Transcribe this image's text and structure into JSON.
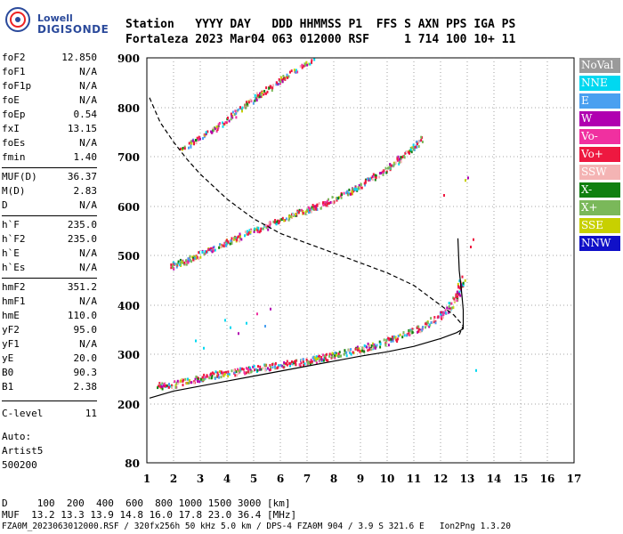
{
  "logo": {
    "line1": "Lowell",
    "line2": "DIGISONDE"
  },
  "header": {
    "row1": "Station   YYYY DAY   DDD HHMMSS P1  FFS S AXN PPS IGA PS",
    "row2": "Fortaleza 2023 Mar04 063 012000 RSF     1 714 100 10+ 11"
  },
  "params": [
    {
      "k": "foF2",
      "v": "12.850"
    },
    {
      "k": "foF1",
      "v": "N/A"
    },
    {
      "k": "foF1p",
      "v": "N/A"
    },
    {
      "k": "foE",
      "v": "N/A"
    },
    {
      "k": "foEp",
      "v": "0.54"
    },
    {
      "k": "fxI",
      "v": "13.15"
    },
    {
      "k": "foEs",
      "v": "N/A"
    },
    {
      "k": "fmin",
      "v": "1.40"
    },
    {
      "k": "MUF(D)",
      "v": "36.37"
    },
    {
      "k": "M(D)",
      "v": "2.83"
    },
    {
      "k": "D",
      "v": "N/A"
    },
    {
      "k": "h`F",
      "v": "235.0"
    },
    {
      "k": "h`F2",
      "v": "235.0"
    },
    {
      "k": "h`E",
      "v": "N/A"
    },
    {
      "k": "h`Es",
      "v": "N/A"
    },
    {
      "k": "hmF2",
      "v": "351.2"
    },
    {
      "k": "hmF1",
      "v": "N/A"
    },
    {
      "k": "hmE",
      "v": "110.0"
    },
    {
      "k": "yF2",
      "v": "95.0"
    },
    {
      "k": "yF1",
      "v": "N/A"
    },
    {
      "k": "yE",
      "v": "20.0"
    },
    {
      "k": "B0",
      "v": "90.3"
    },
    {
      "k": "B1",
      "v": "2.38"
    },
    {
      "k": "C-level",
      "v": "11"
    }
  ],
  "auto": {
    "l1": "Auto:",
    "l2": "Artist5",
    "l3": "500200"
  },
  "legend": [
    {
      "label": "NoVal",
      "color": "#9a9a9a"
    },
    {
      "label": "NNE",
      "color": "#00d8f0"
    },
    {
      "label": "E",
      "color": "#4aa0f0"
    },
    {
      "label": "W",
      "color": "#b000b0"
    },
    {
      "label": "Vo-",
      "color": "#f030a0"
    },
    {
      "label": "Vo+",
      "color": "#ee1840"
    },
    {
      "label": "SSW",
      "color": "#f4b4b4"
    },
    {
      "label": "X-",
      "color": "#108010"
    },
    {
      "label": "X+",
      "color": "#7ab85a"
    },
    {
      "label": "SSE",
      "color": "#c8d000"
    },
    {
      "label": "NNW",
      "color": "#1010c8"
    }
  ],
  "bottom": {
    "d_row": "D     100  200  400  600  800 1000 1500 3000 [km]",
    "muf_row": "MUF  13.2 13.3 13.9 14.8 16.0 17.8 23.0 36.4 [MHz]",
    "file_row": "FZA0M_2023063012000.RSF / 320fx256h 50 kHz 5.0 km / DPS-4 FZA0M 904 / 3.9 S 321.6 E   Ion2Png 1.3.20"
  },
  "chart_data": {
    "type": "scatter",
    "xlim": [
      1,
      17
    ],
    "ylim": [
      80,
      900
    ],
    "x_ticks": [
      "1",
      "2",
      "3",
      "4",
      "5",
      "6",
      "7",
      "8",
      "9",
      "10",
      "11",
      "12",
      "13",
      "14",
      "15",
      "16",
      "17"
    ],
    "y_ticks": [
      "80",
      "200",
      "300",
      "400",
      "500",
      "600",
      "700",
      "800",
      "900"
    ],
    "y_scale": "non-linear",
    "grid": "dotted",
    "series": [
      {
        "name": "O-trace 1st hop",
        "points": [
          [
            1.4,
            238
          ],
          [
            2,
            242
          ],
          [
            2.5,
            248
          ],
          [
            3,
            254
          ],
          [
            3.5,
            260
          ],
          [
            4,
            264
          ],
          [
            4.5,
            268
          ],
          [
            5,
            272
          ],
          [
            5.5,
            276
          ],
          [
            6,
            280
          ],
          [
            6.5,
            284
          ],
          [
            7,
            288
          ],
          [
            7.5,
            294
          ],
          [
            8,
            300
          ],
          [
            8.5,
            306
          ],
          [
            9,
            312
          ],
          [
            9.5,
            320
          ],
          [
            10,
            328
          ],
          [
            10.5,
            338
          ],
          [
            11,
            350
          ],
          [
            11.5,
            364
          ],
          [
            12,
            380
          ],
          [
            12.3,
            395
          ],
          [
            12.6,
            420
          ],
          [
            12.85,
            460
          ]
        ]
      },
      {
        "name": "O-trace 2nd hop",
        "points": [
          [
            1.8,
            478
          ],
          [
            2.5,
            492
          ],
          [
            3,
            505
          ],
          [
            3.5,
            518
          ],
          [
            4,
            530
          ],
          [
            4.5,
            540
          ],
          [
            5,
            552
          ],
          [
            5.5,
            562
          ],
          [
            6,
            575
          ],
          [
            6.5,
            585
          ],
          [
            7,
            595
          ],
          [
            7.5,
            605
          ],
          [
            8,
            617
          ],
          [
            8.5,
            630
          ],
          [
            9,
            645
          ],
          [
            9.5,
            660
          ],
          [
            10,
            678
          ],
          [
            10.5,
            700
          ],
          [
            11,
            720
          ],
          [
            11.3,
            745
          ]
        ]
      },
      {
        "name": "O-trace 3rd hop",
        "points": [
          [
            2.3,
            718
          ],
          [
            2.8,
            735
          ],
          [
            3.3,
            752
          ],
          [
            3.8,
            768
          ],
          [
            4.3,
            790
          ],
          [
            4.8,
            812
          ],
          [
            5.3,
            832
          ],
          [
            5.8,
            850
          ],
          [
            6.3,
            868
          ],
          [
            6.8,
            885
          ],
          [
            7.2,
            900
          ]
        ]
      },
      {
        "name": "profile solid",
        "points": [
          [
            1.1,
            212
          ],
          [
            2,
            226
          ],
          [
            3,
            236
          ],
          [
            4,
            246
          ],
          [
            5,
            256
          ],
          [
            6,
            266
          ],
          [
            7,
            276
          ],
          [
            8,
            286
          ],
          [
            9,
            296
          ],
          [
            10,
            305
          ],
          [
            11,
            316
          ],
          [
            12,
            332
          ],
          [
            12.6,
            344
          ],
          [
            12.85,
            352
          ],
          [
            12.85,
            390
          ],
          [
            12.8,
            420
          ],
          [
            12.7,
            470
          ],
          [
            12.65,
            535
          ]
        ]
      },
      {
        "name": "profile dashed",
        "points": [
          [
            1.1,
            820
          ],
          [
            1.5,
            770
          ],
          [
            2,
            730
          ],
          [
            2.5,
            695
          ],
          [
            3,
            665
          ],
          [
            3.5,
            640
          ],
          [
            4,
            615
          ],
          [
            4.5,
            595
          ],
          [
            5,
            575
          ],
          [
            5.5,
            560
          ],
          [
            6,
            545
          ],
          [
            7,
            525
          ],
          [
            8,
            505
          ],
          [
            9,
            485
          ],
          [
            10,
            465
          ],
          [
            11,
            440
          ],
          [
            11.5,
            420
          ],
          [
            12,
            400
          ],
          [
            12.5,
            380
          ],
          [
            12.85,
            358
          ],
          [
            12.7,
            340
          ]
        ]
      }
    ]
  }
}
